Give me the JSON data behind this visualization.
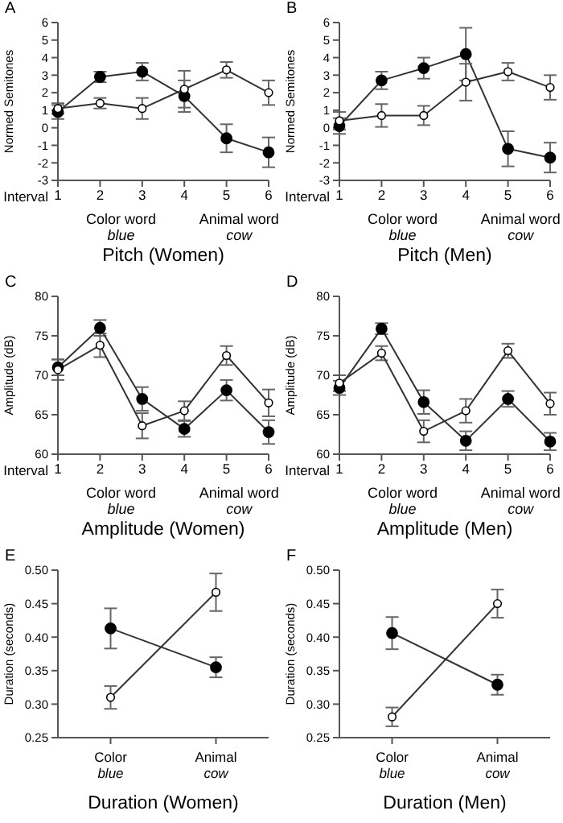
{
  "chart_data": [
    {
      "type": "line",
      "title": "Pitch (Women)",
      "xlabel": "Interval",
      "ylabel": "Normed Semitones",
      "x": [
        1,
        2,
        3,
        4,
        5,
        6
      ],
      "xlim": [
        1,
        6
      ],
      "xticks": [
        1,
        2,
        3,
        4,
        5,
        6
      ],
      "ylim": [
        -3,
        6
      ],
      "yticks": [
        -3,
        -2,
        -1,
        0,
        1,
        2,
        3,
        4,
        5,
        6
      ],
      "marker": "circle",
      "annotations": [
        "A",
        "Color word",
        "blue",
        "Animal word",
        "cow"
      ],
      "series": [
        {
          "color": "#000000",
          "values": [
            0.9,
            2.9,
            3.2,
            1.8,
            -0.6,
            -1.4
          ],
          "errors": [
            0.4,
            0.3,
            0.5,
            0.9,
            0.8,
            0.85
          ]
        },
        {
          "color": "#ffffff",
          "values": [
            1.1,
            1.4,
            1.1,
            2.2,
            3.3,
            2.0
          ],
          "errors": [
            0.3,
            0.3,
            0.6,
            1.05,
            0.45,
            0.7
          ]
        }
      ]
    },
    {
      "type": "line",
      "title": "Pitch (Men)",
      "xlabel": "Interval",
      "ylabel": "Normed Semitones",
      "x": [
        1,
        2,
        3,
        4,
        5,
        6
      ],
      "xlim": [
        1,
        6
      ],
      "xticks": [
        1,
        2,
        3,
        4,
        5,
        6
      ],
      "ylim": [
        -3,
        6
      ],
      "yticks": [
        -3,
        -2,
        -1,
        0,
        1,
        2,
        3,
        4,
        5,
        6
      ],
      "marker": "circle",
      "annotations": [
        "B",
        "Color word",
        "blue",
        "Animal word",
        "cow"
      ],
      "series": [
        {
          "color": "#000000",
          "values": [
            0.1,
            2.7,
            3.4,
            4.2,
            -1.2,
            -1.7
          ],
          "errors": [
            0.45,
            0.5,
            0.6,
            1.5,
            1.0,
            0.85
          ]
        },
        {
          "color": "#ffffff",
          "values": [
            0.4,
            0.7,
            0.7,
            2.6,
            3.2,
            2.3
          ],
          "errors": [
            0.5,
            0.65,
            0.55,
            1.05,
            0.5,
            0.7
          ]
        }
      ]
    },
    {
      "type": "line",
      "title": "Amplitude (Women)",
      "xlabel": "Interval",
      "ylabel": "Amplitude (dB)",
      "x": [
        1,
        2,
        3,
        4,
        5,
        6
      ],
      "xlim": [
        1,
        6
      ],
      "xticks": [
        1,
        2,
        3,
        4,
        5,
        6
      ],
      "ylim": [
        60,
        80
      ],
      "yticks": [
        60,
        65,
        70,
        75,
        80
      ],
      "marker": "circle",
      "annotations": [
        "C",
        "Color word",
        "blue",
        "Animal word",
        "cow"
      ],
      "series": [
        {
          "color": "#000000",
          "values": [
            71,
            76,
            67,
            63.2,
            68.1,
            62.8
          ],
          "errors": [
            1.0,
            1.0,
            1.5,
            1.0,
            1.3,
            1.5
          ]
        },
        {
          "color": "#ffffff",
          "values": [
            70.7,
            73.8,
            63.6,
            65.5,
            72.5,
            66.5
          ],
          "errors": [
            1.3,
            1.5,
            1.6,
            1.2,
            1.2,
            1.7
          ]
        }
      ]
    },
    {
      "type": "line",
      "title": "Amplitude (Men)",
      "xlabel": "Interval",
      "ylabel": "Amplitude (dB)",
      "x": [
        1,
        2,
        3,
        4,
        5,
        6
      ],
      "xlim": [
        1,
        6
      ],
      "xticks": [
        1,
        2,
        3,
        4,
        5,
        6
      ],
      "ylim": [
        60,
        80
      ],
      "yticks": [
        60,
        65,
        70,
        75,
        80
      ],
      "marker": "circle",
      "annotations": [
        "D",
        "Color word",
        "blue",
        "Animal word",
        "cow"
      ],
      "series": [
        {
          "color": "#000000",
          "values": [
            68.4,
            75.9,
            66.6,
            61.7,
            67.0,
            61.6
          ],
          "errors": [
            0.9,
            0.7,
            1.5,
            1.2,
            1.0,
            1.1
          ]
        },
        {
          "color": "#ffffff",
          "values": [
            69.0,
            72.8,
            62.9,
            65.5,
            73.1,
            66.4
          ],
          "errors": [
            1.0,
            0.9,
            1.4,
            1.5,
            0.9,
            1.4
          ]
        }
      ]
    },
    {
      "type": "line",
      "title": "Duration (Women)",
      "ylabel": "Duration (seconds)",
      "categories": [
        "Color\nblue",
        "Animal\ncow"
      ],
      "ylim": [
        0.25,
        0.5
      ],
      "yticks": [
        0.25,
        {
          "value": 0.3,
          "label": "0.30"
        },
        0.35,
        {
          "value": 0.4,
          "label": "0.40"
        },
        0.45,
        {
          "value": 0.5,
          "label": "0.50"
        }
      ],
      "marker": "circle",
      "annotations": [
        "E"
      ],
      "series": [
        {
          "color": "#000000",
          "values": [
            0.413,
            0.355
          ],
          "errors": [
            0.03,
            0.015
          ]
        },
        {
          "color": "#ffffff",
          "values": [
            0.31,
            0.467
          ],
          "errors": [
            0.017,
            0.028
          ]
        }
      ]
    },
    {
      "type": "line",
      "title": "Duration (Men)",
      "ylabel": "Duration (seconds)",
      "categories": [
        "Color\nblue",
        "Animal\ncow"
      ],
      "ylim": [
        0.25,
        0.5
      ],
      "yticks": [
        0.25,
        {
          "value": 0.3,
          "label": "0.30"
        },
        0.35,
        {
          "value": 0.4,
          "label": "0.40"
        },
        0.45,
        {
          "value": 0.5,
          "label": "0.50"
        }
      ],
      "marker": "circle",
      "annotations": [
        "F"
      ],
      "series": [
        {
          "color": "#000000",
          "values": [
            0.406,
            0.329
          ],
          "errors": [
            0.024,
            0.015
          ]
        },
        {
          "color": "#ffffff",
          "values": [
            0.281,
            0.45
          ],
          "errors": [
            0.014,
            0.021
          ]
        }
      ]
    }
  ]
}
